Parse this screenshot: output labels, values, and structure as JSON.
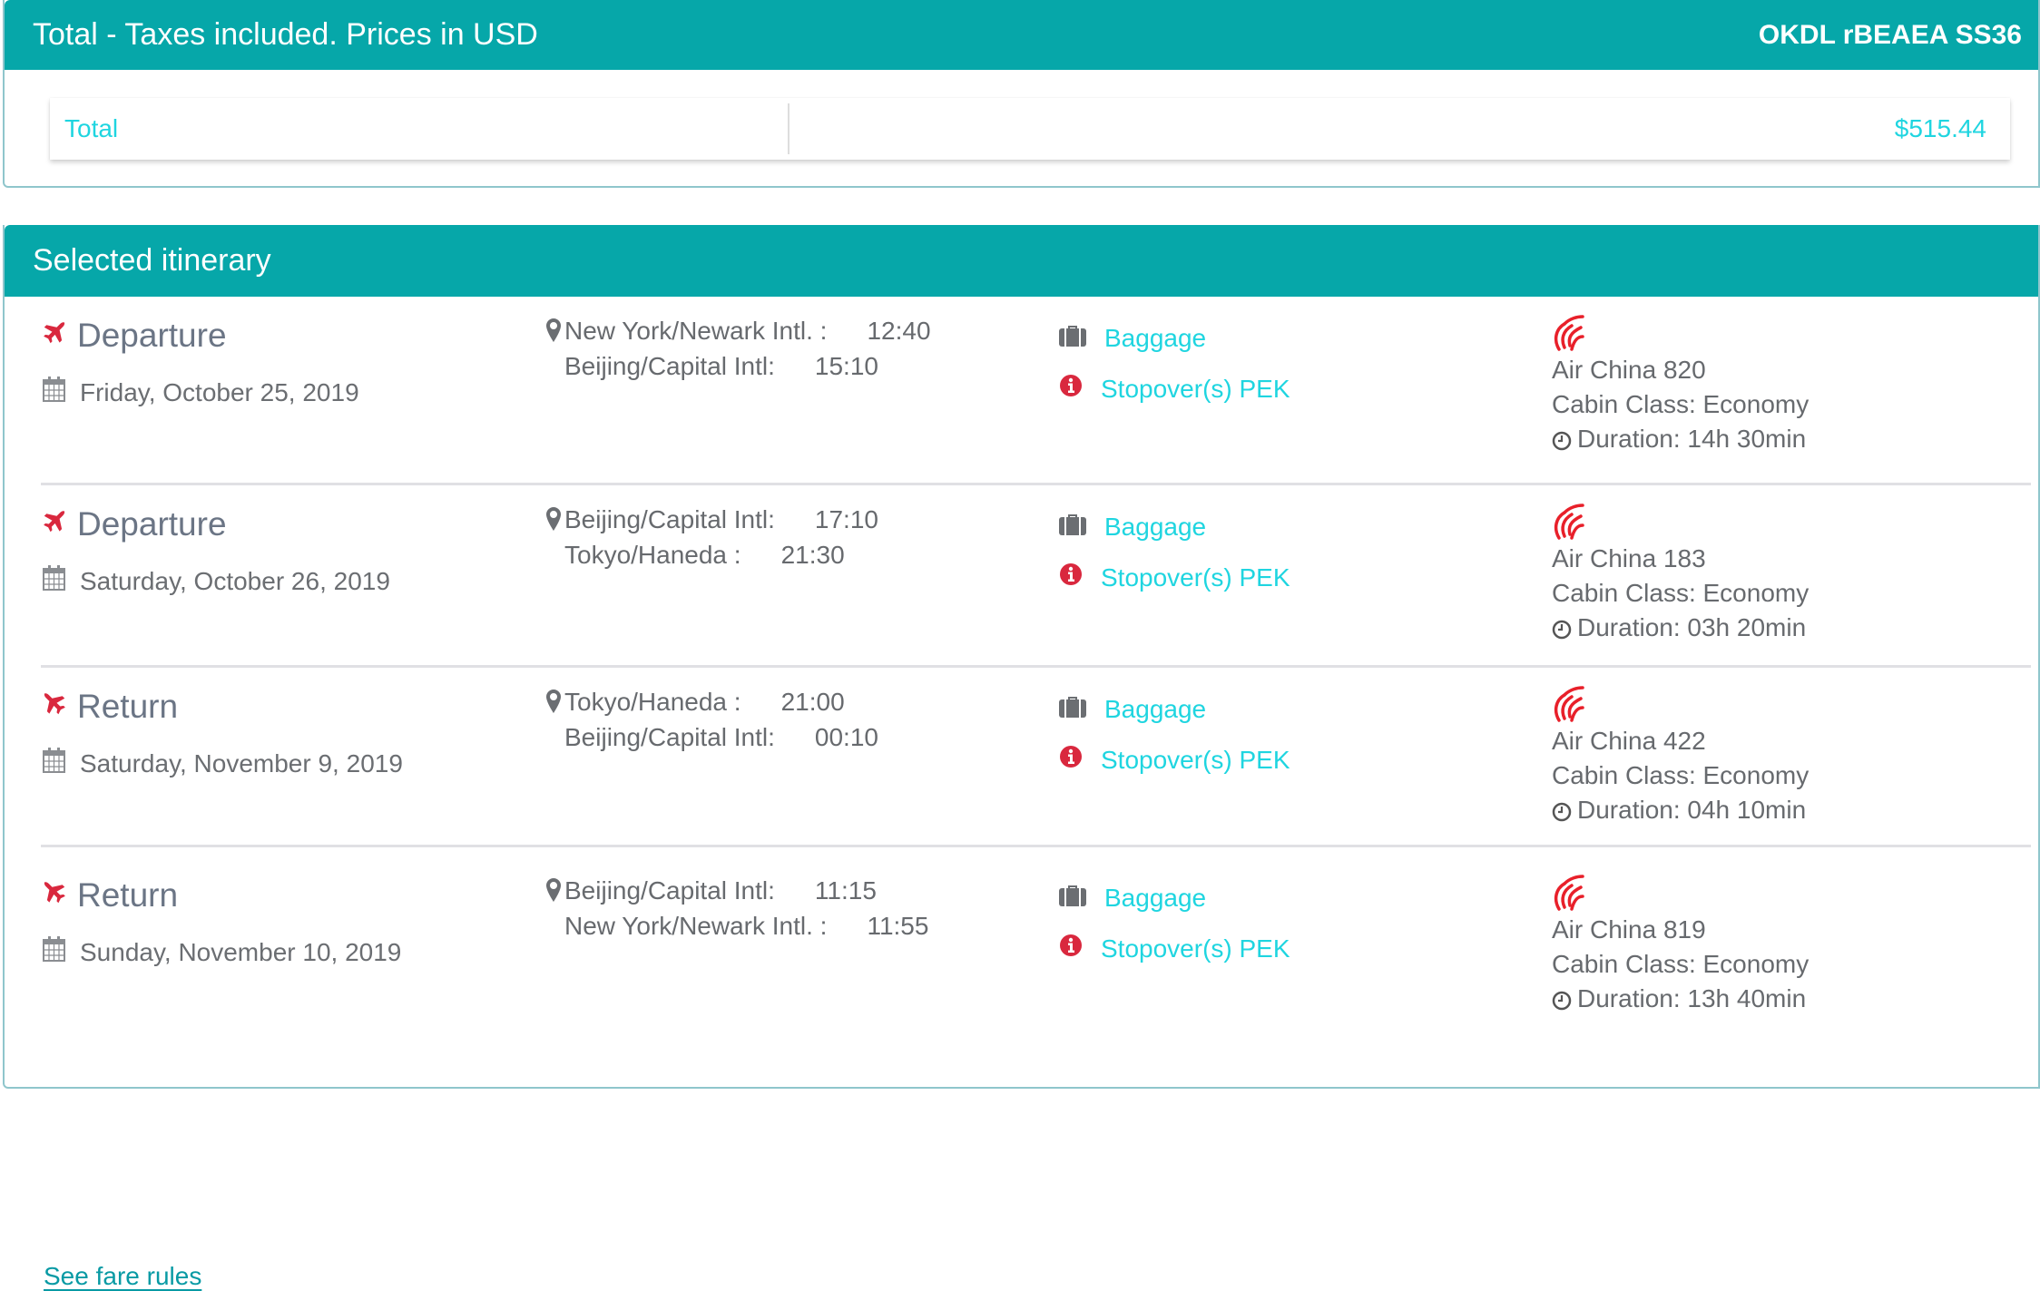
{
  "price_summary": {
    "header": "Total - Taxes included. Prices in USD",
    "booking_ref": "OKDL rBEAEA SS36",
    "total_label": "Total",
    "total_value": "$515.44"
  },
  "itinerary": {
    "header": "Selected itinerary",
    "segments": [
      {
        "type": "Departure",
        "date": "Friday, October 25, 2019",
        "from": "New York/Newark Intl. :",
        "from_time": "12:40",
        "to": "Beijing/Capital Intl:",
        "to_time": "15:10",
        "baggage": "Baggage",
        "stopover": "Stopover(s) PEK",
        "flight": "Air China 820",
        "cabin": "Cabin Class: Economy",
        "duration": "Duration: 14h 30min"
      },
      {
        "type": "Departure",
        "date": "Saturday, October 26, 2019",
        "from": "Beijing/Capital Intl:",
        "from_time": "17:10",
        "to": "Tokyo/Haneda :",
        "to_time": "21:30",
        "baggage": "Baggage",
        "stopover": "Stopover(s) PEK",
        "flight": "Air China 183",
        "cabin": "Cabin Class: Economy",
        "duration": "Duration: 03h 20min"
      },
      {
        "type": "Return",
        "date": "Saturday, November 9, 2019",
        "from": "Tokyo/Haneda :",
        "from_time": "21:00",
        "to": "Beijing/Capital Intl:",
        "to_time": "00:10",
        "baggage": "Baggage",
        "stopover": "Stopover(s) PEK",
        "flight": "Air China 422",
        "cabin": "Cabin Class: Economy",
        "duration": "Duration: 04h 10min"
      },
      {
        "type": "Return",
        "date": "Sunday, November 10, 2019",
        "from": "Beijing/Capital Intl:",
        "from_time": "11:15",
        "to": "New York/Newark Intl. :",
        "to_time": "11:55",
        "baggage": "Baggage",
        "stopover": "Stopover(s) PEK",
        "flight": "Air China 819",
        "cabin": "Cabin Class: Economy",
        "duration": "Duration: 13h 40min"
      }
    ],
    "fare_rules_link": "See fare rules"
  },
  "colors": {
    "header": "#06a7a9",
    "link": "#1fd5e0",
    "accent_red": "#d9283e",
    "airline_logo": "#e8202a"
  },
  "icons": {
    "title_departure": "plane-departure-icon",
    "title_return": "plane-return-icon",
    "date": "calendar-icon",
    "location": "map-marker-icon",
    "baggage": "suitcase-icon",
    "stopover": "info-circle-icon",
    "airline": "air-china-logo",
    "duration": "clock-icon"
  }
}
